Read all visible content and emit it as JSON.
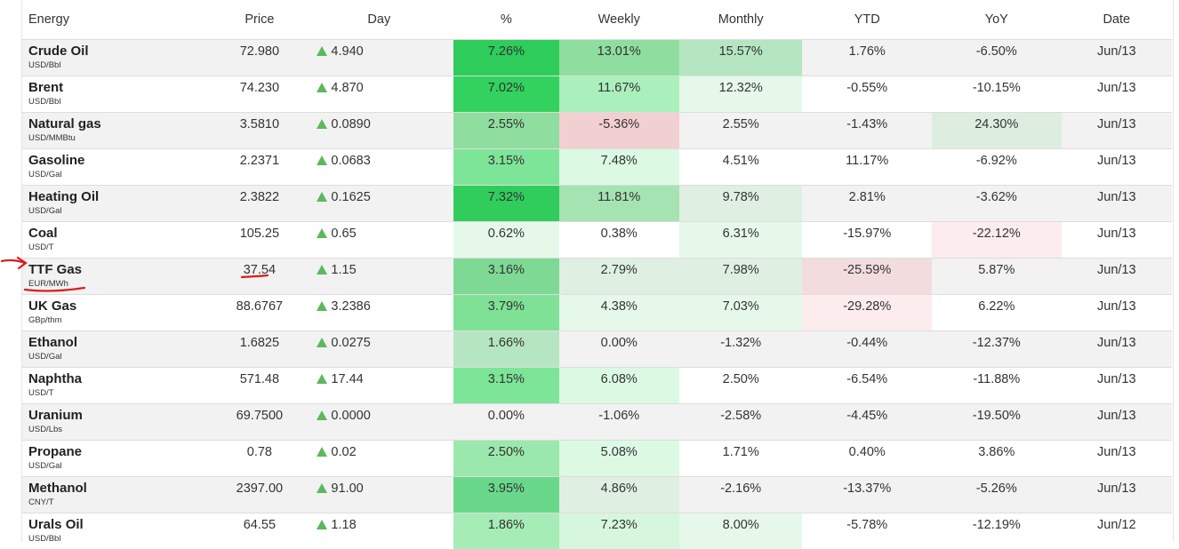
{
  "columns": [
    "Energy",
    "Price",
    "Day",
    "%",
    "Weekly",
    "Monthly",
    "YTD",
    "YoY",
    "Date"
  ],
  "rows": [
    {
      "name": "Crude Oil",
      "unit": "USD/Bbl",
      "price": "72.980",
      "day": "4.940",
      "pct": "7.26%",
      "weekly": "13.01%",
      "monthly": "15.57%",
      "ytd": "1.76%",
      "yoy": "-6.50%",
      "date": "Jun/13"
    },
    {
      "name": "Brent",
      "unit": "USD/Bbl",
      "price": "74.230",
      "day": "4.870",
      "pct": "7.02%",
      "weekly": "11.67%",
      "monthly": "12.32%",
      "ytd": "-0.55%",
      "yoy": "-10.15%",
      "date": "Jun/13"
    },
    {
      "name": "Natural gas",
      "unit": "USD/MMBtu",
      "price": "3.5810",
      "day": "0.0890",
      "pct": "2.55%",
      "weekly": "-5.36%",
      "monthly": "2.55%",
      "ytd": "-1.43%",
      "yoy": "24.30%",
      "date": "Jun/13"
    },
    {
      "name": "Gasoline",
      "unit": "USD/Gal",
      "price": "2.2371",
      "day": "0.0683",
      "pct": "3.15%",
      "weekly": "7.48%",
      "monthly": "4.51%",
      "ytd": "11.17%",
      "yoy": "-6.92%",
      "date": "Jun/13"
    },
    {
      "name": "Heating Oil",
      "unit": "USD/Gal",
      "price": "2.3822",
      "day": "0.1625",
      "pct": "7.32%",
      "weekly": "11.81%",
      "monthly": "9.78%",
      "ytd": "2.81%",
      "yoy": "-3.62%",
      "date": "Jun/13"
    },
    {
      "name": "Coal",
      "unit": "USD/T",
      "price": "105.25",
      "day": "0.65",
      "pct": "0.62%",
      "weekly": "0.38%",
      "monthly": "6.31%",
      "ytd": "-15.97%",
      "yoy": "-22.12%",
      "date": "Jun/13"
    },
    {
      "name": "TTF Gas",
      "unit": "EUR/MWh",
      "price": "37.54",
      "day": "1.15",
      "pct": "3.16%",
      "weekly": "2.79%",
      "monthly": "7.98%",
      "ytd": "-25.59%",
      "yoy": "5.87%",
      "date": "Jun/13"
    },
    {
      "name": "UK Gas",
      "unit": "GBp/thm",
      "price": "88.6767",
      "day": "3.2386",
      "pct": "3.79%",
      "weekly": "4.38%",
      "monthly": "7.03%",
      "ytd": "-29.28%",
      "yoy": "6.22%",
      "date": "Jun/13"
    },
    {
      "name": "Ethanol",
      "unit": "USD/Gal",
      "price": "1.6825",
      "day": "0.0275",
      "pct": "1.66%",
      "weekly": "0.00%",
      "monthly": "-1.32%",
      "ytd": "-0.44%",
      "yoy": "-12.37%",
      "date": "Jun/13"
    },
    {
      "name": "Naphtha",
      "unit": "USD/T",
      "price": "571.48",
      "day": "17.44",
      "pct": "3.15%",
      "weekly": "6.08%",
      "monthly": "2.50%",
      "ytd": "-6.54%",
      "yoy": "-11.88%",
      "date": "Jun/13"
    },
    {
      "name": "Uranium",
      "unit": "USD/Lbs",
      "price": "69.7500",
      "day": "0.0000",
      "pct": "0.00%",
      "weekly": "-1.06%",
      "monthly": "-2.58%",
      "ytd": "-4.45%",
      "yoy": "-19.50%",
      "date": "Jun/13"
    },
    {
      "name": "Propane",
      "unit": "USD/Gal",
      "price": "0.78",
      "day": "0.02",
      "pct": "2.50%",
      "weekly": "5.08%",
      "monthly": "1.71%",
      "ytd": "0.40%",
      "yoy": "3.86%",
      "date": "Jun/13"
    },
    {
      "name": "Methanol",
      "unit": "CNY/T",
      "price": "2397.00",
      "day": "91.00",
      "pct": "3.95%",
      "weekly": "4.86%",
      "monthly": "-2.16%",
      "ytd": "-13.37%",
      "yoy": "-5.26%",
      "date": "Jun/13"
    },
    {
      "name": "Urals Oil",
      "unit": "USD/Bbl",
      "price": "64.55",
      "day": "1.18",
      "pct": "1.86%",
      "weekly": "7.23%",
      "monthly": "8.00%",
      "ytd": "-5.78%",
      "yoy": "-12.19%",
      "date": "Jun/12"
    }
  ],
  "cell_colors": {
    "pct": [
      "#2ecc5a",
      "#33d15e",
      "#8fdd9f",
      "#7de598",
      "#31cd5c",
      "#e6f8ea",
      "#7ed995",
      "#7ee196",
      "#b5e6c1",
      "#7de598",
      "",
      "#9be8ad",
      "#6ad88b",
      "#a6ecb7"
    ],
    "weekly": [
      "#8fdd9f",
      "#abefbd",
      "#f2cfd0",
      "#dcf9e3",
      "#a5e3b3",
      "",
      "#dff0e3",
      "#e6f8ea",
      "",
      "#dcf9e3",
      "",
      "#dcf9e3",
      "#dff0e3",
      "#d6f7de"
    ],
    "monthly": [
      "#b5e6c1",
      "#e6f8ea",
      "",
      "",
      "#dff0e3",
      "#e6f8ea",
      "#dff0e3",
      "#e6f8ea",
      "",
      "",
      "",
      "",
      "",
      "#e6f8ea"
    ],
    "ytd": [
      "",
      "",
      "",
      "",
      "",
      "",
      "#f2dcdd",
      "#fdeced",
      "",
      "",
      "",
      "",
      "",
      ""
    ],
    "yoy": [
      "",
      "",
      "#ddeee1",
      "",
      "",
      "#fdeced",
      "",
      "",
      "",
      "",
      "",
      "",
      "",
      ""
    ]
  }
}
